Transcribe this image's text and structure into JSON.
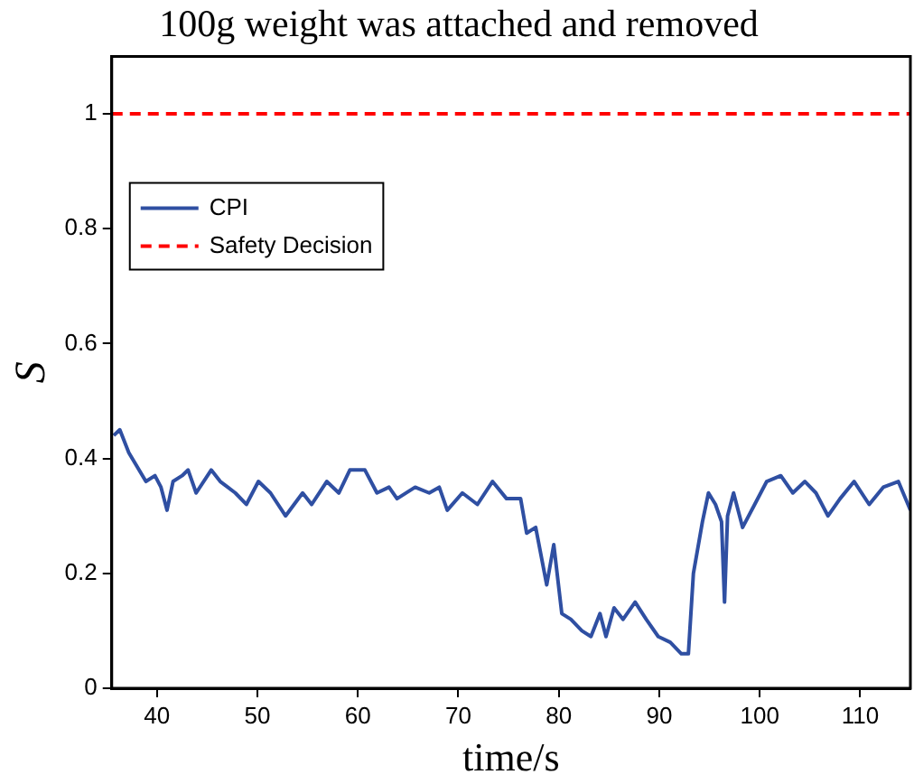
{
  "chart_data": {
    "type": "line",
    "title": "100g weight was attached and removed",
    "xlabel": "time/s",
    "ylabel": "S",
    "xlim": [
      35.5,
      115
    ],
    "xticks": [
      40,
      50,
      60,
      70,
      80,
      90,
      100,
      110
    ],
    "ylim": [
      0,
      1.1
    ],
    "yticks": [
      0,
      0.2,
      0.4,
      0.6,
      0.8,
      1
    ],
    "grid": false,
    "legend": "top left",
    "marker": "none",
    "series": [
      {
        "name": "CPI",
        "color": "#2f4fa2",
        "line_style": "solid",
        "x": [
          35.7,
          36.3,
          37.2,
          38.9,
          39.8,
          40.4,
          41,
          41.6,
          42.5,
          43.1,
          43.9,
          45.4,
          46.3,
          47.8,
          48.9,
          50.1,
          51.3,
          52.8,
          54.5,
          55.4,
          56.9,
          58.1,
          59.2,
          60.7,
          61.9,
          63.1,
          63.9,
          65.7,
          67.1,
          68.1,
          68.9,
          70.4,
          71.9,
          73.4,
          74.8,
          76.2,
          76.8,
          77.7,
          78.8,
          79.5,
          80.3,
          81.2,
          82.3,
          83.2,
          84.1,
          84.7,
          85.5,
          86.4,
          87.6,
          88.7,
          89.9,
          91.1,
          92.2,
          92.9,
          93.4,
          94.3,
          94.9,
          95.6,
          96.2,
          96.5,
          96.8,
          97.4,
          98.3,
          99.5,
          100.7,
          102.1,
          103.3,
          104.5,
          105.6,
          106.8,
          108,
          109.4,
          110.9,
          112.3,
          113.8,
          115
        ],
        "values": [
          0.44,
          0.45,
          0.41,
          0.36,
          0.37,
          0.35,
          0.31,
          0.36,
          0.37,
          0.38,
          0.34,
          0.38,
          0.36,
          0.34,
          0.32,
          0.36,
          0.34,
          0.3,
          0.34,
          0.32,
          0.36,
          0.34,
          0.38,
          0.38,
          0.34,
          0.35,
          0.33,
          0.35,
          0.34,
          0.35,
          0.31,
          0.34,
          0.32,
          0.36,
          0.33,
          0.33,
          0.27,
          0.28,
          0.18,
          0.25,
          0.13,
          0.12,
          0.1,
          0.09,
          0.13,
          0.09,
          0.14,
          0.12,
          0.15,
          0.12,
          0.09,
          0.08,
          0.06,
          0.06,
          0.2,
          0.29,
          0.34,
          0.32,
          0.29,
          0.15,
          0.3,
          0.34,
          0.28,
          0.32,
          0.36,
          0.37,
          0.34,
          0.36,
          0.34,
          0.3,
          0.33,
          0.36,
          0.32,
          0.35,
          0.36,
          0.31
        ]
      },
      {
        "name": "Safety Decision",
        "color": "#ff0000",
        "line_style": "dashed",
        "x": [
          35.5,
          115
        ],
        "values": [
          1,
          1
        ]
      }
    ]
  }
}
